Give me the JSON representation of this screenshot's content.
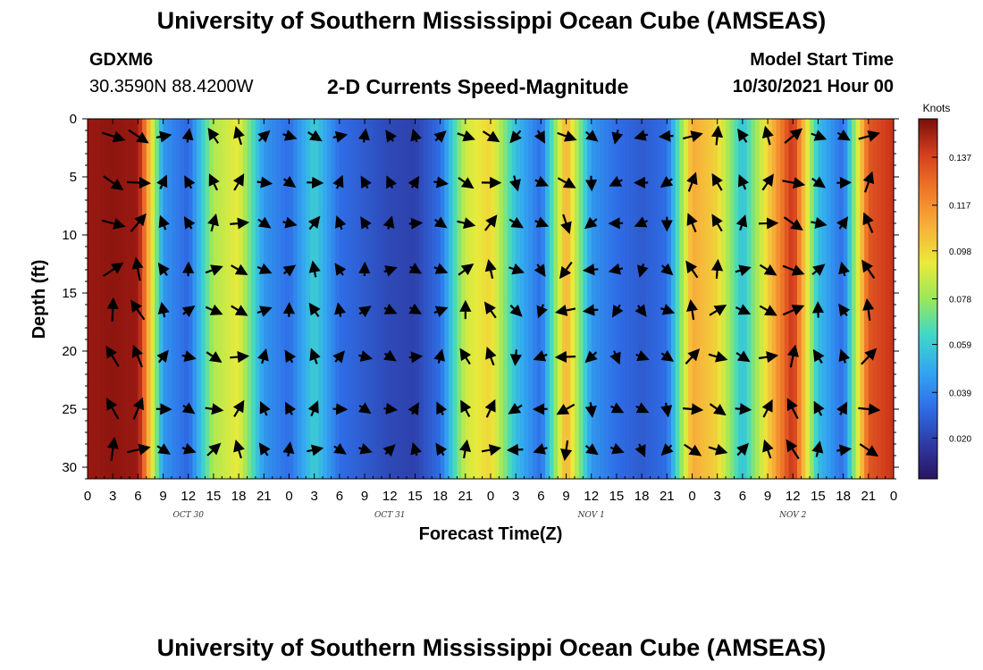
{
  "header": {
    "title": "University of Southern Mississippi Ocean Cube (AMSEAS)",
    "station_id": "GDXM6",
    "coordinates": "30.3590N  88.4200W",
    "subtitle": "2-D Currents Speed-Magnitude",
    "start_label": "Model Start Time",
    "start_value": "10/30/2021 Hour 00"
  },
  "footer": {
    "title": "University of Southern Mississippi Ocean Cube (AMSEAS)"
  },
  "colors": {
    "palette": [
      "#2b1460",
      "#2e3ca6",
      "#2f6fe8",
      "#33a7f0",
      "#3fd8c8",
      "#9ae85a",
      "#eaea3a",
      "#f8b03a",
      "#ef7a28",
      "#d5401e",
      "#9c1a12",
      "#7a0f0c"
    ]
  },
  "chart_data": {
    "type": "heatmap",
    "xlabel": "Forecast Time(Z)",
    "ylabel": "Depth (ft)",
    "x_tick_labels": [
      "0",
      "3",
      "6",
      "9",
      "12",
      "15",
      "18",
      "21",
      "0",
      "3",
      "6",
      "9",
      "12",
      "15",
      "18",
      "21",
      "0",
      "3",
      "6",
      "9",
      "12",
      "15",
      "18",
      "21",
      "0",
      "3",
      "6",
      "9",
      "12",
      "15",
      "18",
      "21",
      "0"
    ],
    "day_labels": [
      {
        "text": "OCT 30",
        "hour": 12
      },
      {
        "text": "OCT 31",
        "hour": 36
      },
      {
        "text": "NOV 1",
        "hour": 60
      },
      {
        "text": "NOV 2",
        "hour": 84
      }
    ],
    "xlim": [
      0,
      96
    ],
    "ylim": [
      0,
      31
    ],
    "y_ticks": [
      0,
      5,
      10,
      15,
      20,
      25,
      30
    ],
    "y_tick_labels": [
      "0",
      "5",
      "10",
      "15",
      "20",
      "25",
      "30"
    ],
    "y_inverted": true,
    "colorbar": {
      "units": "Knots",
      "range": [
        0.003,
        0.153
      ],
      "ticks": [
        0.02,
        0.039,
        0.059,
        0.078,
        0.098,
        0.117,
        0.137
      ],
      "tick_labels": [
        "0.020",
        "0.039",
        "0.059",
        "0.078",
        "0.098",
        "0.117",
        "0.137"
      ]
    },
    "speed_profile": {
      "hours": [
        0,
        3,
        6,
        9,
        12,
        15,
        18,
        21,
        24,
        27,
        30,
        33,
        36,
        39,
        42,
        45,
        48,
        51,
        54,
        57,
        60,
        63,
        66,
        69,
        72,
        75,
        78,
        81,
        84,
        87,
        90,
        93,
        96
      ],
      "speed_knots": [
        0.14,
        0.145,
        0.14,
        0.04,
        0.028,
        0.075,
        0.085,
        0.04,
        0.03,
        0.055,
        0.03,
        0.025,
        0.02,
        0.018,
        0.03,
        0.08,
        0.09,
        0.05,
        0.03,
        0.1,
        0.04,
        0.03,
        0.025,
        0.03,
        0.1,
        0.09,
        0.05,
        0.09,
        0.13,
        0.05,
        0.03,
        0.12,
        0.13
      ]
    },
    "vector_depths_ft": [
      1.5,
      5.5,
      9,
      13,
      16.5,
      20.5,
      25,
      28.5
    ]
  }
}
